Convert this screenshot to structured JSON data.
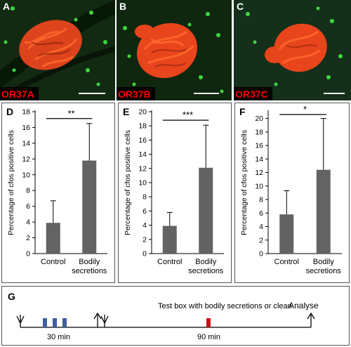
{
  "micrographs": [
    {
      "letter": "A",
      "label": "OR37A"
    },
    {
      "letter": "B",
      "label": "OR37B"
    },
    {
      "letter": "C",
      "label": "OR37C"
    }
  ],
  "chart_data": [
    {
      "panel": "D",
      "type": "bar",
      "categories": [
        "Control",
        "Bodily secretions"
      ],
      "values": [
        3.9,
        11.8
      ],
      "errors": [
        2.8,
        4.7
      ],
      "ylabel": "Percentage of cfos positive cells",
      "ylim": [
        0,
        18
      ],
      "yticks": [
        0,
        2,
        4,
        6,
        8,
        10,
        12,
        14,
        16,
        18
      ],
      "significance": "**"
    },
    {
      "panel": "E",
      "type": "bar",
      "categories": [
        "Control",
        "Bodily secretions"
      ],
      "values": [
        3.9,
        12.1
      ],
      "errors": [
        1.9,
        6.0
      ],
      "ylabel": "Percentage of cfos positive cells",
      "ylim": [
        0,
        20
      ],
      "yticks": [
        0,
        2,
        4,
        6,
        8,
        10,
        12,
        14,
        16,
        18,
        20
      ],
      "significance": "***"
    },
    {
      "panel": "F",
      "type": "bar",
      "categories": [
        "Control",
        "Bodily secretions"
      ],
      "values": [
        5.8,
        12.4
      ],
      "errors": [
        3.5,
        7.6
      ],
      "ylabel": "Percentage of cfos positive cells",
      "ylim": [
        0,
        21
      ],
      "yticks": [
        0,
        2,
        4,
        6,
        8,
        10,
        12,
        14,
        16,
        18,
        20
      ],
      "significance": "*"
    }
  ],
  "timeline": {
    "letter": "G",
    "duration1": "30 min",
    "duration2": "90 min",
    "test_label": "Test box with bodily secretions or clean",
    "analyse_label": "Analyse",
    "colors": {
      "block": "#3d5f9e",
      "test": "#cc1111"
    }
  }
}
